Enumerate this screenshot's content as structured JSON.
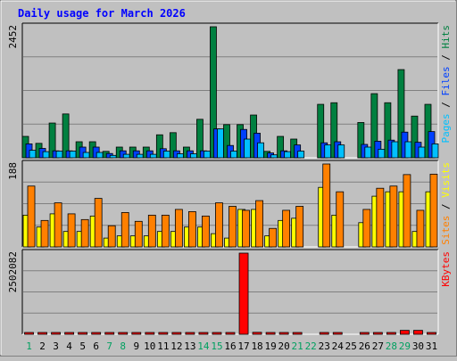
{
  "chart_data": {
    "type": "bar",
    "title": "Daily usage for March 2026",
    "categories": [
      "1",
      "2",
      "3",
      "4",
      "5",
      "6",
      "7",
      "8",
      "9",
      "10",
      "11",
      "12",
      "13",
      "14",
      "15",
      "16",
      "17",
      "18",
      "19",
      "20",
      "21",
      "22",
      "23",
      "24",
      "25",
      "26",
      "27",
      "28",
      "29",
      "30",
      "31"
    ],
    "weekend_days": [
      "1",
      "7",
      "8",
      "14",
      "15",
      "21",
      "22",
      "28",
      "29"
    ],
    "panels": [
      {
        "id": "hits-files-pages",
        "ymax": 2452,
        "ymax_label": "2452",
        "legend": [
          {
            "text": "Pages",
            "color": "#00c0ff"
          },
          {
            "text": " / ",
            "color": "#000000"
          },
          {
            "text": "Files",
            "color": "#0040ff"
          },
          {
            "text": " / ",
            "color": "#000000"
          },
          {
            "text": "Hits",
            "color": "#008040"
          }
        ],
        "series": [
          {
            "name": "Hits",
            "color": "#008040",
            "values": [
              400,
              270,
              650,
              820,
              300,
              300,
              120,
              200,
              200,
              200,
              430,
              470,
              200,
              720,
              2452,
              620,
              620,
              800,
              120,
              400,
              350,
              0,
              1000,
              1030,
              0,
              660,
              1200,
              1030,
              1650,
              780,
              1000
            ]
          },
          {
            "name": "Files",
            "color": "#0040ff",
            "values": [
              260,
              175,
              130,
              130,
              200,
              200,
              80,
              130,
              130,
              130,
              170,
              130,
              130,
              130,
              540,
              230,
              530,
              460,
              90,
              130,
              240,
              0,
              280,
              300,
              0,
              250,
              310,
              330,
              480,
              290,
              490
            ]
          },
          {
            "name": "Pages",
            "color": "#00c0ff",
            "values": [
              140,
              115,
              125,
              125,
              100,
              100,
              45,
              65,
              65,
              65,
              125,
              75,
              75,
              125,
              540,
              125,
              350,
              280,
              55,
              115,
              125,
              0,
              240,
              240,
              0,
              200,
              160,
              300,
              300,
              200,
              260
            ]
          }
        ]
      },
      {
        "id": "sites-visits",
        "ymax": 188,
        "ymax_label": "188",
        "legend": [
          {
            "text": "Sites",
            "color": "#ff8000"
          },
          {
            "text": " / ",
            "color": "#000000"
          },
          {
            "text": "Visits",
            "color": "#ffff00"
          }
        ],
        "series": [
          {
            "name": "Visits",
            "color": "#ffff00",
            "values": [
              72,
              45,
              75,
              35,
              35,
              70,
              20,
              25,
              25,
              25,
              35,
              35,
              45,
              45,
              30,
              20,
              85,
              85,
              25,
              60,
              65,
              0,
              135,
              72,
              0,
              55,
              115,
              125,
              125,
              35,
              125
            ]
          },
          {
            "name": "Sites",
            "color": "#ff8000",
            "values": [
              138,
              60,
              100,
              75,
              62,
              110,
              48,
              78,
              58,
              72,
              72,
              85,
              80,
              70,
              100,
              92,
              83,
              105,
              42,
              83,
              92,
              0,
              188,
              125,
              0,
              85,
              133,
              138,
              164,
              83,
              165
            ]
          }
        ]
      },
      {
        "id": "kbytes",
        "ymax": 2502082,
        "ymax_label": "2502082",
        "legend": [
          {
            "text": "KBytes",
            "color": "#ff0000"
          }
        ],
        "series": [
          {
            "name": "KBytes",
            "color": "#ff0000",
            "values": [
              40000,
              40000,
              40000,
              40000,
              40000,
              40000,
              40000,
              40000,
              40000,
              40000,
              40000,
              40000,
              40000,
              40000,
              40000,
              40000,
              2502082,
              60000,
              40000,
              40000,
              40000,
              0,
              40000,
              40000,
              0,
              40000,
              40000,
              40000,
              120000,
              120000,
              40000
            ]
          }
        ]
      }
    ]
  }
}
